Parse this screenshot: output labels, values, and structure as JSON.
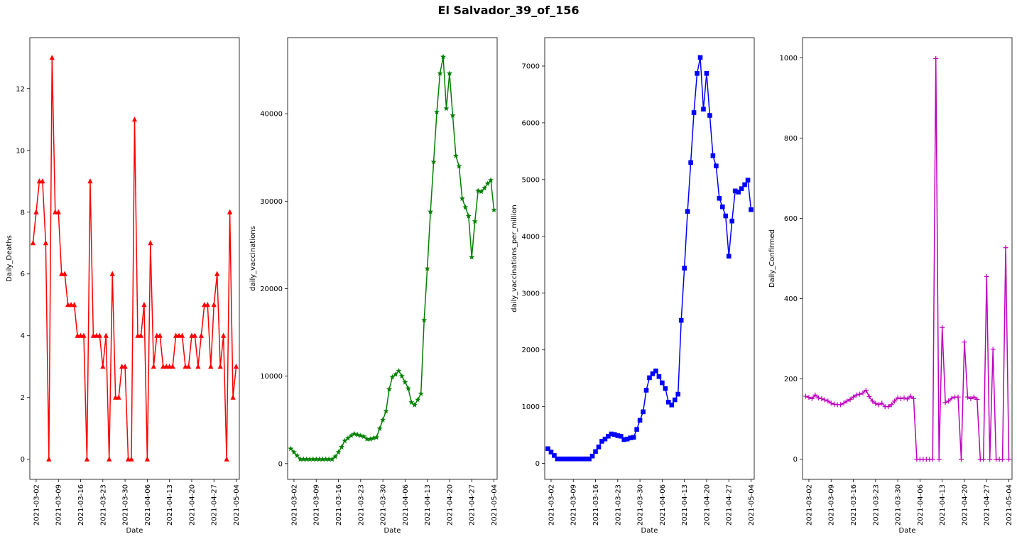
{
  "title": "El Salvador_39_of_156",
  "x_axis": {
    "start": "2021-02-28",
    "end": "2021-05-05",
    "ticks": [
      "2021-03-02",
      "2021-03-09",
      "2021-03-16",
      "2021-03-23",
      "2021-03-30",
      "2021-04-06",
      "2021-04-13",
      "2021-04-20",
      "2021-04-27",
      "2021-05-04"
    ]
  },
  "chart_data": [
    {
      "type": "line",
      "xlabel": "Date",
      "ylabel": "Daily_Deaths",
      "ylim": [
        -0.65,
        13.65
      ],
      "yticks": [
        0,
        2,
        4,
        6,
        8,
        10,
        12
      ],
      "ytick_labels": [
        "0",
        "2",
        "4",
        "6",
        "8",
        "10",
        "12"
      ],
      "color": "#ff0000",
      "marker": "triangle",
      "values": [
        7,
        8,
        9,
        9,
        7,
        0,
        13,
        8,
        8,
        6,
        6,
        5,
        5,
        5,
        4,
        4,
        4,
        0,
        9,
        4,
        4,
        4,
        3,
        4,
        0,
        6,
        2,
        2,
        3,
        3,
        0,
        0,
        11,
        4,
        4,
        5,
        0,
        7,
        3,
        4,
        4,
        3,
        3,
        3,
        3,
        4,
        4,
        4,
        3,
        3,
        4,
        4,
        3,
        4,
        5,
        5,
        3,
        5,
        6,
        3,
        4,
        0,
        8,
        2,
        3
      ]
    },
    {
      "type": "line",
      "xlabel": "Date",
      "ylabel": "daily_vaccinations",
      "ylim": [
        -1800,
        48700
      ],
      "yticks": [
        0,
        10000,
        20000,
        30000,
        40000
      ],
      "ytick_labels": [
        "0",
        "10000",
        "20000",
        "30000",
        "40000"
      ],
      "color": "#008000",
      "marker": "star",
      "values": [
        1700,
        1300,
        900,
        500,
        500,
        500,
        500,
        500,
        500,
        500,
        500,
        500,
        500,
        500,
        800,
        1300,
        1900,
        2600,
        2900,
        3200,
        3400,
        3300,
        3200,
        3100,
        2800,
        2800,
        2900,
        3000,
        4000,
        5000,
        6000,
        8500,
        9900,
        10200,
        10600,
        10000,
        9300,
        8600,
        7000,
        6700,
        7300,
        8000,
        16400,
        22300,
        28800,
        34500,
        40200,
        44600,
        46500,
        40600,
        44600,
        39800,
        35200,
        34000,
        30300,
        29300,
        28300,
        23600,
        27700,
        31200,
        31100,
        31500,
        32000,
        32400,
        29000
      ]
    },
    {
      "type": "line",
      "xlabel": "Date",
      "ylabel": "daily_vaccinations_per_million",
      "ylim": [
        -280,
        7500
      ],
      "yticks": [
        0,
        1000,
        2000,
        3000,
        4000,
        5000,
        6000,
        7000
      ],
      "ytick_labels": [
        "0",
        "1000",
        "2000",
        "3000",
        "4000",
        "5000",
        "6000",
        "7000"
      ],
      "color": "#0000ff",
      "marker": "square",
      "values": [
        260,
        200,
        140,
        80,
        80,
        80,
        80,
        80,
        80,
        80,
        80,
        80,
        80,
        80,
        130,
        210,
        290,
        390,
        430,
        480,
        520,
        510,
        490,
        480,
        420,
        430,
        450,
        460,
        600,
        760,
        910,
        1290,
        1510,
        1580,
        1630,
        1530,
        1420,
        1320,
        1080,
        1030,
        1120,
        1220,
        2520,
        3440,
        4440,
        5300,
        6180,
        6870,
        7150,
        6240,
        6870,
        6130,
        5420,
        5240,
        4670,
        4520,
        4360,
        3650,
        4270,
        4800,
        4780,
        4840,
        4910,
        4990,
        4470
      ]
    },
    {
      "type": "line",
      "xlabel": "Date",
      "ylabel": "Daily_Confirmed",
      "ylim": [
        -50,
        1050
      ],
      "yticks": [
        0,
        200,
        400,
        600,
        800,
        1000
      ],
      "ytick_labels": [
        "0",
        "200",
        "400",
        "600",
        "800",
        "1000"
      ],
      "color": "#bf00bf",
      "marker": "plus",
      "values": [
        157,
        154,
        151,
        160,
        153,
        151,
        148,
        145,
        140,
        137,
        136,
        136,
        140,
        145,
        149,
        155,
        160,
        162,
        165,
        172,
        156,
        145,
        139,
        136,
        140,
        131,
        131,
        136,
        145,
        153,
        151,
        153,
        150,
        157,
        151,
        0,
        0,
        0,
        0,
        0,
        0,
        998,
        0,
        328,
        141,
        145,
        152,
        155,
        155,
        0,
        292,
        155,
        151,
        155,
        149,
        0,
        0,
        455,
        0,
        274,
        0,
        0,
        0,
        527,
        0
      ]
    }
  ]
}
